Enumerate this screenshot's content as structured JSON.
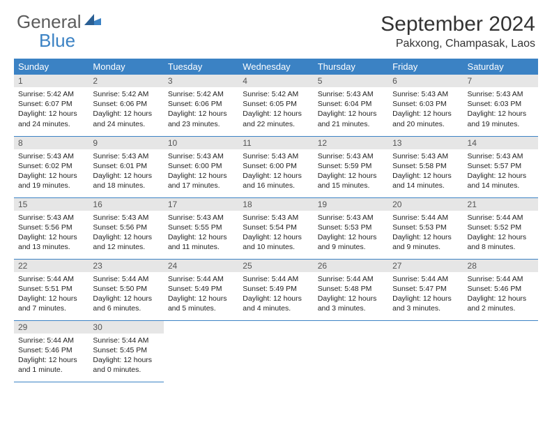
{
  "brand": {
    "part1": "General",
    "part2": "Blue"
  },
  "header": {
    "title": "September 2024",
    "location": "Pakxong, Champasak, Laos"
  },
  "colors": {
    "accent": "#3b82c4",
    "header_text": "#ffffff",
    "day_bar_bg": "#e6e6e6",
    "day_bar_text": "#555555",
    "body_text": "#222222",
    "title_text": "#333333",
    "logo_gray": "#5c5c5c"
  },
  "weekdays": [
    "Sunday",
    "Monday",
    "Tuesday",
    "Wednesday",
    "Thursday",
    "Friday",
    "Saturday"
  ],
  "weeks": [
    [
      {
        "n": "1",
        "sr": "5:42 AM",
        "ss": "6:07 PM",
        "dl": "12 hours and 24 minutes."
      },
      {
        "n": "2",
        "sr": "5:42 AM",
        "ss": "6:06 PM",
        "dl": "12 hours and 24 minutes."
      },
      {
        "n": "3",
        "sr": "5:42 AM",
        "ss": "6:06 PM",
        "dl": "12 hours and 23 minutes."
      },
      {
        "n": "4",
        "sr": "5:42 AM",
        "ss": "6:05 PM",
        "dl": "12 hours and 22 minutes."
      },
      {
        "n": "5",
        "sr": "5:43 AM",
        "ss": "6:04 PM",
        "dl": "12 hours and 21 minutes."
      },
      {
        "n": "6",
        "sr": "5:43 AM",
        "ss": "6:03 PM",
        "dl": "12 hours and 20 minutes."
      },
      {
        "n": "7",
        "sr": "5:43 AM",
        "ss": "6:03 PM",
        "dl": "12 hours and 19 minutes."
      }
    ],
    [
      {
        "n": "8",
        "sr": "5:43 AM",
        "ss": "6:02 PM",
        "dl": "12 hours and 19 minutes."
      },
      {
        "n": "9",
        "sr": "5:43 AM",
        "ss": "6:01 PM",
        "dl": "12 hours and 18 minutes."
      },
      {
        "n": "10",
        "sr": "5:43 AM",
        "ss": "6:00 PM",
        "dl": "12 hours and 17 minutes."
      },
      {
        "n": "11",
        "sr": "5:43 AM",
        "ss": "6:00 PM",
        "dl": "12 hours and 16 minutes."
      },
      {
        "n": "12",
        "sr": "5:43 AM",
        "ss": "5:59 PM",
        "dl": "12 hours and 15 minutes."
      },
      {
        "n": "13",
        "sr": "5:43 AM",
        "ss": "5:58 PM",
        "dl": "12 hours and 14 minutes."
      },
      {
        "n": "14",
        "sr": "5:43 AM",
        "ss": "5:57 PM",
        "dl": "12 hours and 14 minutes."
      }
    ],
    [
      {
        "n": "15",
        "sr": "5:43 AM",
        "ss": "5:56 PM",
        "dl": "12 hours and 13 minutes."
      },
      {
        "n": "16",
        "sr": "5:43 AM",
        "ss": "5:56 PM",
        "dl": "12 hours and 12 minutes."
      },
      {
        "n": "17",
        "sr": "5:43 AM",
        "ss": "5:55 PM",
        "dl": "12 hours and 11 minutes."
      },
      {
        "n": "18",
        "sr": "5:43 AM",
        "ss": "5:54 PM",
        "dl": "12 hours and 10 minutes."
      },
      {
        "n": "19",
        "sr": "5:43 AM",
        "ss": "5:53 PM",
        "dl": "12 hours and 9 minutes."
      },
      {
        "n": "20",
        "sr": "5:44 AM",
        "ss": "5:53 PM",
        "dl": "12 hours and 9 minutes."
      },
      {
        "n": "21",
        "sr": "5:44 AM",
        "ss": "5:52 PM",
        "dl": "12 hours and 8 minutes."
      }
    ],
    [
      {
        "n": "22",
        "sr": "5:44 AM",
        "ss": "5:51 PM",
        "dl": "12 hours and 7 minutes."
      },
      {
        "n": "23",
        "sr": "5:44 AM",
        "ss": "5:50 PM",
        "dl": "12 hours and 6 minutes."
      },
      {
        "n": "24",
        "sr": "5:44 AM",
        "ss": "5:49 PM",
        "dl": "12 hours and 5 minutes."
      },
      {
        "n": "25",
        "sr": "5:44 AM",
        "ss": "5:49 PM",
        "dl": "12 hours and 4 minutes."
      },
      {
        "n": "26",
        "sr": "5:44 AM",
        "ss": "5:48 PM",
        "dl": "12 hours and 3 minutes."
      },
      {
        "n": "27",
        "sr": "5:44 AM",
        "ss": "5:47 PM",
        "dl": "12 hours and 3 minutes."
      },
      {
        "n": "28",
        "sr": "5:44 AM",
        "ss": "5:46 PM",
        "dl": "12 hours and 2 minutes."
      }
    ],
    [
      {
        "n": "29",
        "sr": "5:44 AM",
        "ss": "5:46 PM",
        "dl": "12 hours and 1 minute."
      },
      {
        "n": "30",
        "sr": "5:44 AM",
        "ss": "5:45 PM",
        "dl": "12 hours and 0 minutes."
      },
      null,
      null,
      null,
      null,
      null
    ]
  ],
  "labels": {
    "sunrise": "Sunrise:",
    "sunset": "Sunset:",
    "daylight": "Daylight:"
  }
}
